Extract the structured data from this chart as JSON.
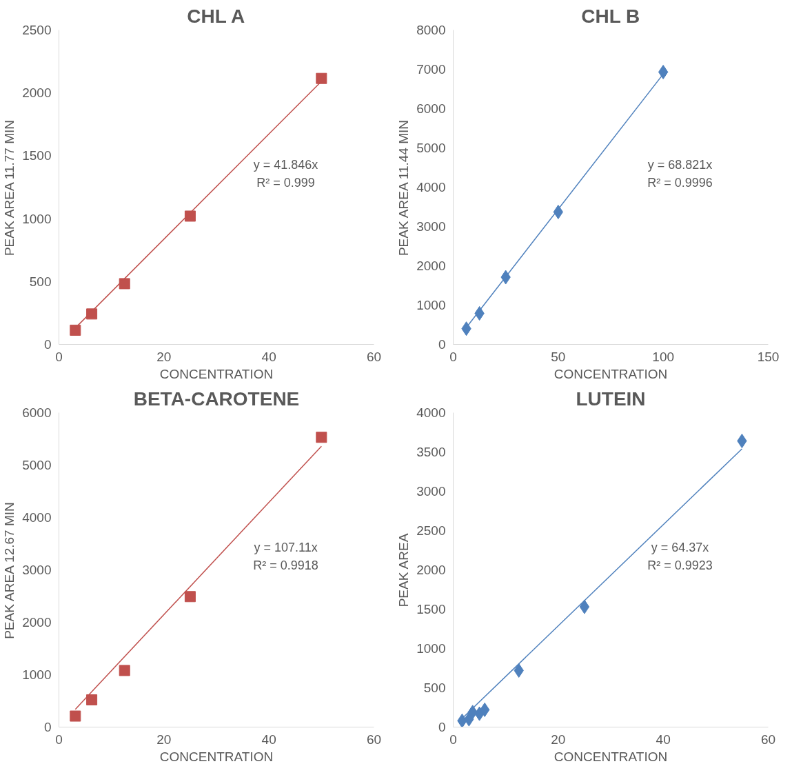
{
  "chart_data": [
    {
      "type": "scatter",
      "title": "CHL A",
      "xlabel": "CONCENTRATION",
      "ylabel": "PEAK AREA 11.77 MIN",
      "xlim": [
        0,
        60
      ],
      "ylim": [
        0,
        2500
      ],
      "xticks": [
        0,
        20,
        40,
        60
      ],
      "yticks": [
        0,
        500,
        1000,
        1500,
        2000,
        2500
      ],
      "annotations": [
        "y = 41.846x",
        "R² = 0.999"
      ],
      "series": [
        {
          "marker": "square",
          "color": "#c0504d",
          "x": [
            3.125,
            6.25,
            12.5,
            25,
            50
          ],
          "values": [
            113,
            242,
            483,
            1020,
            2115
          ]
        },
        {
          "type": "line",
          "marker": "none",
          "color": "#c0504d",
          "x": [
            3.125,
            50
          ],
          "values": [
            131,
            2092
          ]
        }
      ]
    },
    {
      "type": "scatter",
      "title": "CHL B",
      "xlabel": "CONCENTRATION",
      "ylabel": "PEAK AREA 11.44 MIN",
      "xlim": [
        0,
        150
      ],
      "ylim": [
        0,
        8000
      ],
      "xticks": [
        0,
        50,
        100,
        150
      ],
      "yticks": [
        0,
        1000,
        2000,
        3000,
        4000,
        5000,
        6000,
        7000,
        8000
      ],
      "annotations": [
        "y = 68.821x",
        "R² = 0.9996"
      ],
      "series": [
        {
          "marker": "diamond",
          "color": "#4f81bd",
          "x": [
            6.25,
            12.5,
            25,
            50,
            100
          ],
          "values": [
            400,
            790,
            1710,
            3370,
            6930
          ]
        },
        {
          "type": "line",
          "marker": "none",
          "color": "#4f81bd",
          "x": [
            6.25,
            100
          ],
          "values": [
            430,
            6880
          ]
        }
      ]
    },
    {
      "type": "scatter",
      "title": "BETA-CAROTENE",
      "xlabel": "CONCENTRATION",
      "ylabel": "PEAK AREA 12.67 MIN",
      "xlim": [
        0,
        60
      ],
      "ylim": [
        0,
        6000
      ],
      "xticks": [
        0,
        20,
        40,
        60
      ],
      "yticks": [
        0,
        1000,
        2000,
        3000,
        4000,
        5000,
        6000
      ],
      "annotations": [
        "y = 107.11x",
        "R² = 0.9918"
      ],
      "series": [
        {
          "marker": "square",
          "color": "#c0504d",
          "x": [
            3.125,
            6.25,
            12.5,
            25,
            50
          ],
          "values": [
            210,
            520,
            1080,
            2490,
            5530
          ]
        },
        {
          "type": "line",
          "marker": "none",
          "color": "#c0504d",
          "x": [
            3.125,
            50
          ],
          "values": [
            340,
            5360
          ]
        }
      ]
    },
    {
      "type": "scatter",
      "title": "LUTEIN",
      "xlabel": "CONCENTRATION",
      "ylabel": "PEAK AREA",
      "xlim": [
        0,
        60
      ],
      "ylim": [
        0,
        4000
      ],
      "xticks": [
        0,
        20,
        40,
        60
      ],
      "yticks": [
        0,
        500,
        1000,
        1500,
        2000,
        2500,
        3000,
        3500,
        4000
      ],
      "annotations": [
        "y = 64.37x",
        "R² = 0.9923"
      ],
      "series": [
        {
          "marker": "diamond",
          "color": "#4f81bd",
          "x": [
            1.7,
            3.0,
            3.7,
            5.0,
            6.0,
            12.5,
            25,
            55
          ],
          "values": [
            80,
            100,
            190,
            170,
            220,
            720,
            1530,
            3640
          ]
        },
        {
          "type": "line",
          "marker": "none",
          "color": "#4f81bd",
          "x": [
            1.7,
            55
          ],
          "values": [
            110,
            3540
          ]
        }
      ]
    }
  ]
}
